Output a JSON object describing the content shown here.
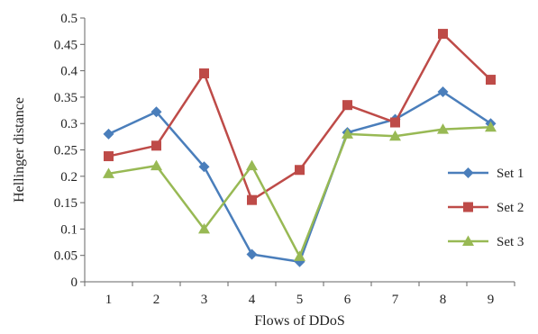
{
  "chart_data": {
    "type": "line",
    "xlabel": "Flows of DDoS",
    "ylabel": "Hellinger distance",
    "x": [
      1,
      2,
      3,
      4,
      5,
      6,
      7,
      8,
      9
    ],
    "x_tick_labels": [
      "1",
      "2",
      "3",
      "4",
      "5",
      "6",
      "7",
      "8",
      "9"
    ],
    "y_tick_labels": [
      "0",
      "0.05",
      "0.1",
      "0.15",
      "0.2",
      "0.25",
      "0.3",
      "0.35",
      "0.4",
      "0.45",
      "0.5"
    ],
    "ylim": [
      0,
      0.5
    ],
    "grid": false,
    "legend_position": "right",
    "series": [
      {
        "name": "Set 1",
        "color": "#4a7ebb",
        "marker": "diamond",
        "values": [
          0.28,
          0.322,
          0.218,
          0.052,
          0.038,
          0.283,
          0.308,
          0.36,
          0.3
        ]
      },
      {
        "name": "Set 2",
        "color": "#be4b48",
        "marker": "square",
        "values": [
          0.238,
          0.258,
          0.395,
          0.155,
          0.212,
          0.335,
          0.302,
          0.47,
          0.383
        ]
      },
      {
        "name": "Set 3",
        "color": "#98b954",
        "marker": "triangle",
        "values": [
          0.205,
          0.22,
          0.1,
          0.22,
          0.048,
          0.28,
          0.276,
          0.289,
          0.293
        ]
      }
    ]
  }
}
